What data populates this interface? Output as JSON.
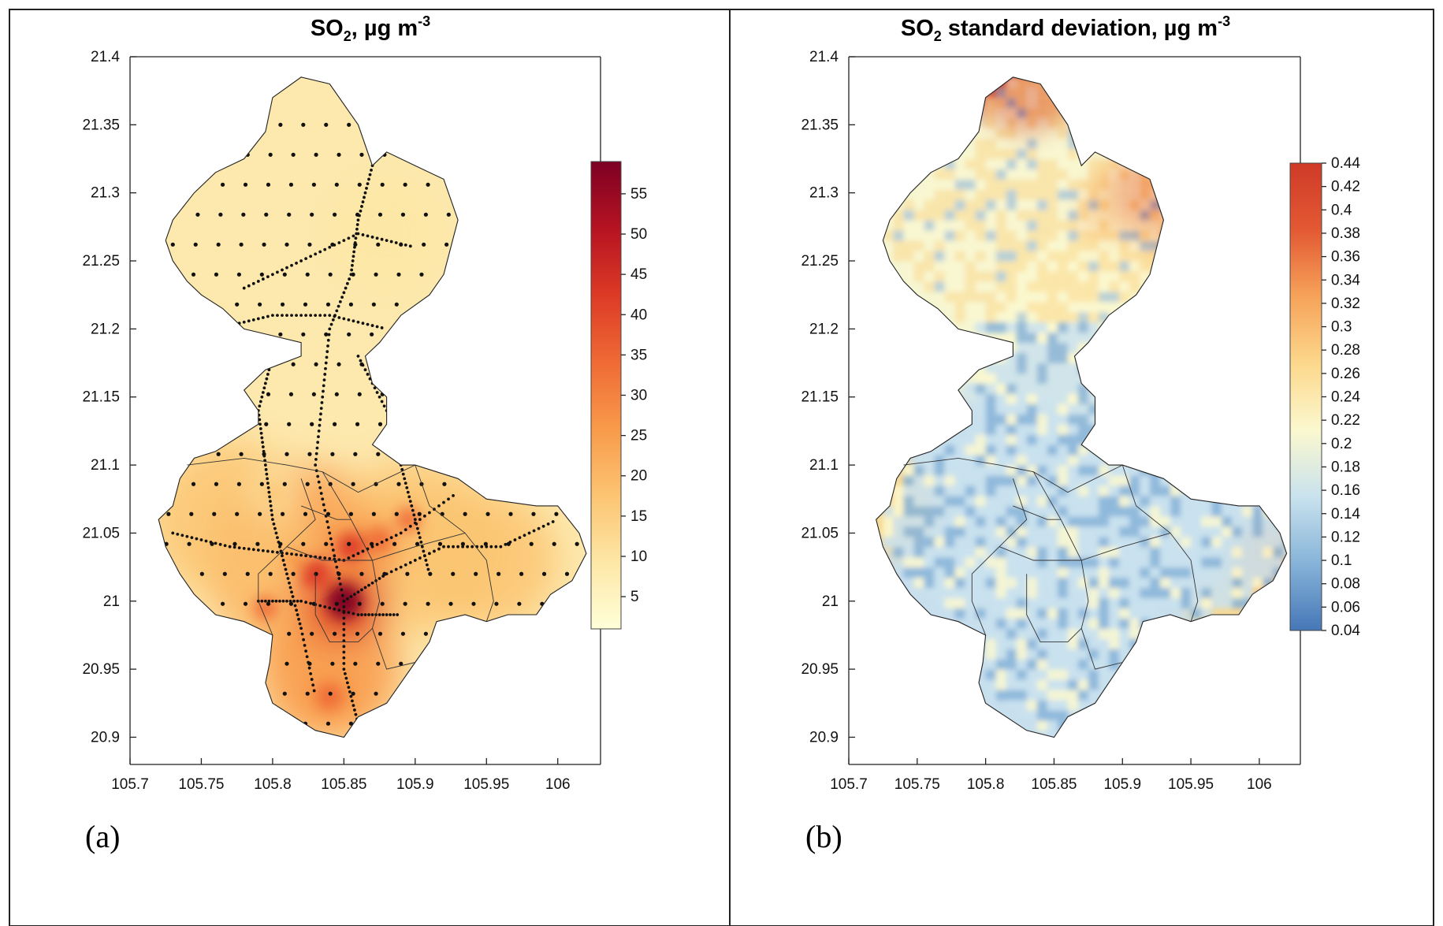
{
  "panel_a": {
    "title_main": "SO",
    "title_sub": "2",
    "title_rest": ", µg m",
    "title_sup": "-3",
    "label": "(a)",
    "colorbar": {
      "ticks": [
        "55",
        "50",
        "45",
        "40",
        "35",
        "30",
        "25",
        "20",
        "15",
        "10",
        "5"
      ],
      "values": [
        55,
        50,
        45,
        40,
        35,
        30,
        25,
        20,
        15,
        10,
        5
      ],
      "range": [
        1,
        59
      ],
      "colors": [
        "#ffffd9",
        "#fde7a6",
        "#fcc472",
        "#f89a4a",
        "#ef6a35",
        "#dd3a26",
        "#b51321",
        "#7d0023"
      ]
    }
  },
  "panel_b": {
    "title_main": "SO",
    "title_sub": "2",
    "title_rest": " standard deviation,  µg m",
    "title_sup": "-3",
    "label": "(b)",
    "colorbar": {
      "ticks": [
        "0.44",
        "0.42",
        "0.4",
        "0.38",
        "0.36",
        "0.34",
        "0.32",
        "0.3",
        "0.28",
        "0.26",
        "0.24",
        "0.22",
        "0.2",
        "0.18",
        "0.16",
        "0.14",
        "0.12",
        "0.1",
        "0.08",
        "0.06",
        "0.04"
      ],
      "values": [
        0.44,
        0.42,
        0.4,
        0.38,
        0.36,
        0.34,
        0.32,
        0.3,
        0.28,
        0.26,
        0.24,
        0.22,
        0.2,
        0.18,
        0.16,
        0.14,
        0.12,
        0.1,
        0.08,
        0.06,
        0.04
      ],
      "range": [
        0.04,
        0.44
      ],
      "colors": [
        "#4677b7",
        "#86b3d8",
        "#c9e2ee",
        "#fbf8cf",
        "#fcd88c",
        "#f6a35a",
        "#e35933",
        "#cf3a28"
      ]
    }
  },
  "axes": {
    "x_ticks": [
      "105.7",
      "105.75",
      "105.8",
      "105.85",
      "105.9",
      "105.95",
      "106"
    ],
    "x_values": [
      105.7,
      105.75,
      105.8,
      105.85,
      105.9,
      105.95,
      106
    ],
    "y_ticks": [
      "21.4",
      "21.35",
      "21.3",
      "21.25",
      "21.2",
      "21.15",
      "21.1",
      "21.05",
      "21",
      "20.95",
      "20.9"
    ],
    "y_values": [
      21.4,
      21.35,
      21.3,
      21.25,
      21.2,
      21.15,
      21.1,
      21.05,
      21,
      20.95,
      20.9
    ],
    "xlim": [
      105.7,
      106.03
    ],
    "ylim": [
      20.88,
      21.4
    ]
  },
  "map_data": {
    "boundary": [
      [
        105.8,
        21.37
      ],
      [
        105.82,
        21.385
      ],
      [
        105.84,
        21.38
      ],
      [
        105.86,
        21.35
      ],
      [
        105.87,
        21.32
      ],
      [
        105.88,
        21.33
      ],
      [
        105.9,
        21.32
      ],
      [
        105.92,
        21.31
      ],
      [
        105.93,
        21.28
      ],
      [
        105.925,
        21.26
      ],
      [
        105.92,
        21.24
      ],
      [
        105.91,
        21.225
      ],
      [
        105.89,
        21.21
      ],
      [
        105.875,
        21.19
      ],
      [
        105.865,
        21.18
      ],
      [
        105.87,
        21.16
      ],
      [
        105.88,
        21.15
      ],
      [
        105.88,
        21.13
      ],
      [
        105.87,
        21.115
      ],
      [
        105.89,
        21.1
      ],
      [
        105.9,
        21.1
      ],
      [
        105.93,
        21.09
      ],
      [
        105.95,
        21.075
      ],
      [
        105.985,
        21.07
      ],
      [
        106.0,
        21.07
      ],
      [
        106.015,
        21.05
      ],
      [
        106.02,
        21.035
      ],
      [
        106.01,
        21.015
      ],
      [
        105.995,
        21.005
      ],
      [
        105.985,
        20.99
      ],
      [
        105.965,
        20.99
      ],
      [
        105.95,
        20.985
      ],
      [
        105.935,
        20.99
      ],
      [
        105.915,
        20.985
      ],
      [
        105.91,
        20.97
      ],
      [
        105.9,
        20.955
      ],
      [
        105.89,
        20.94
      ],
      [
        105.88,
        20.925
      ],
      [
        105.86,
        20.915
      ],
      [
        105.85,
        20.9
      ],
      [
        105.83,
        20.905
      ],
      [
        105.815,
        20.915
      ],
      [
        105.8,
        20.925
      ],
      [
        105.795,
        20.94
      ],
      [
        105.798,
        20.955
      ],
      [
        105.8,
        20.975
      ],
      [
        105.78,
        20.985
      ],
      [
        105.76,
        20.99
      ],
      [
        105.745,
        21.005
      ],
      [
        105.735,
        21.02
      ],
      [
        105.725,
        21.04
      ],
      [
        105.72,
        21.06
      ],
      [
        105.73,
        21.07
      ],
      [
        105.735,
        21.09
      ],
      [
        105.745,
        21.105
      ],
      [
        105.76,
        21.11
      ],
      [
        105.775,
        21.12
      ],
      [
        105.79,
        21.13
      ],
      [
        105.79,
        21.14
      ],
      [
        105.78,
        21.155
      ],
      [
        105.795,
        21.17
      ],
      [
        105.82,
        21.18
      ],
      [
        105.82,
        21.19
      ],
      [
        105.8,
        21.195
      ],
      [
        105.78,
        21.2
      ],
      [
        105.765,
        21.215
      ],
      [
        105.75,
        21.225
      ],
      [
        105.74,
        21.235
      ],
      [
        105.73,
        21.25
      ],
      [
        105.725,
        21.265
      ],
      [
        105.73,
        21.28
      ],
      [
        105.745,
        21.3
      ],
      [
        105.76,
        21.315
      ],
      [
        105.78,
        21.325
      ],
      [
        105.795,
        21.345
      ],
      [
        105.8,
        21.37
      ]
    ],
    "hotspots": [
      [
        105.85,
        21.0,
        58
      ],
      [
        105.83,
        21.02,
        45
      ],
      [
        105.855,
        21.04,
        40
      ],
      [
        105.875,
        21.045,
        35
      ],
      [
        105.895,
        21.06,
        30
      ],
      [
        105.84,
        20.93,
        38
      ],
      [
        105.795,
        20.995,
        30
      ],
      [
        105.815,
        21.03,
        25
      ],
      [
        105.8,
        21.08,
        18
      ],
      [
        105.88,
        21.27,
        10
      ]
    ]
  },
  "figure_text": {}
}
